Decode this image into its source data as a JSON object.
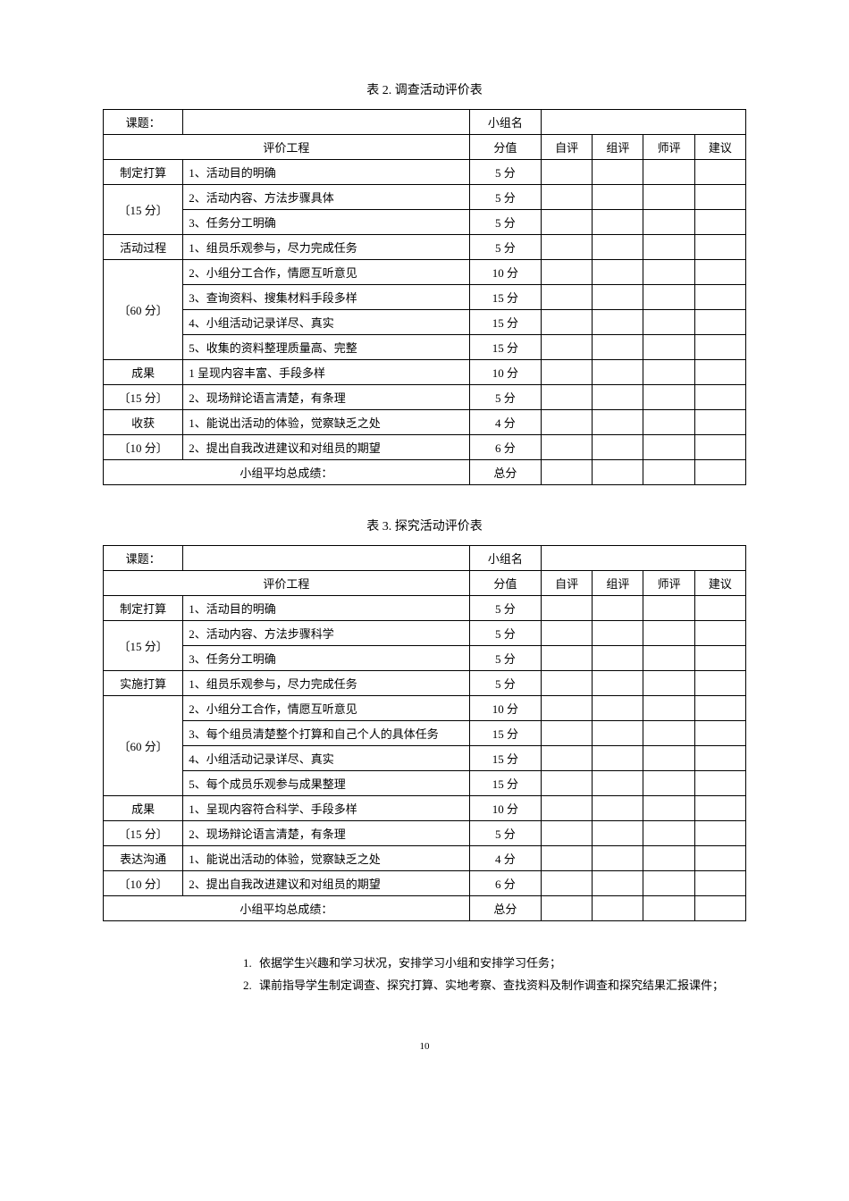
{
  "table1": {
    "title": "表 2.  调查活动评价表",
    "topic_label": "课题：",
    "group_label": "小组名",
    "criteria_header": "评价工程",
    "score_header": "分值",
    "eval_headers": [
      "自评",
      "组评",
      "师评",
      "建议"
    ],
    "sections": [
      {
        "category": "制定打算",
        "points": "〔15 分〕",
        "rows": [
          {
            "criteria": "1、活动目的明确",
            "score": "5 分"
          },
          {
            "criteria": "2、活动内容、方法步骤具体",
            "score": "5 分"
          },
          {
            "criteria": "3、任务分工明确",
            "score": "5 分"
          }
        ]
      },
      {
        "category": "活动过程",
        "points": "〔60 分〕",
        "rows": [
          {
            "criteria": "1、组员乐观参与，尽力完成任务",
            "score": "5 分"
          },
          {
            "criteria": "2、小组分工合作，情愿互听意见",
            "score": "10 分"
          },
          {
            "criteria": "3、查询资料、搜集材料手段多样",
            "score": "15 分"
          },
          {
            "criteria": "4、小组活动记录详尽、真实",
            "score": "15 分"
          },
          {
            "criteria": "5、收集的资料整理质量高、完整",
            "score": "15 分"
          }
        ]
      },
      {
        "category": "成果",
        "points": "〔15 分〕",
        "rows": [
          {
            "criteria": "1 呈现内容丰富、手段多样",
            "score": "10 分"
          },
          {
            "criteria": "2、现场辩论语言清楚，有条理",
            "score": "5 分"
          }
        ]
      },
      {
        "category": "收获",
        "points": "〔10 分〕",
        "rows": [
          {
            "criteria": "1、能说出活动的体验，觉察缺乏之处",
            "score": "4 分"
          },
          {
            "criteria": "2、提出自我改进建议和对组员的期望",
            "score": "6 分"
          }
        ]
      }
    ],
    "footer_label": "小组平均总成绩：",
    "footer_score": "总分"
  },
  "table2": {
    "title": "表 3. 探究活动评价表",
    "topic_label": "课题：",
    "group_label": "小组名",
    "criteria_header": "评价工程",
    "score_header": "分值",
    "eval_headers": [
      "自评",
      "组评",
      "师评",
      "建议"
    ],
    "sections": [
      {
        "category": "制定打算",
        "points": "〔15 分〕",
        "rows": [
          {
            "criteria": "1、活动目的明确",
            "score": "5 分"
          },
          {
            "criteria": "2、活动内容、方法步骤科学",
            "score": "5 分"
          },
          {
            "criteria": "3、任务分工明确",
            "score": "5 分"
          }
        ]
      },
      {
        "category": "实施打算",
        "points": "〔60 分〕",
        "rows": [
          {
            "criteria": "1、组员乐观参与，尽力完成任务",
            "score": "5 分"
          },
          {
            "criteria": "2、小组分工合作，情愿互听意见",
            "score": "10 分"
          },
          {
            "criteria": "3、每个组员清楚整个打算和自己个人的具体任务",
            "score": "15 分"
          },
          {
            "criteria": "4、小组活动记录详尽、真实",
            "score": "15 分"
          },
          {
            "criteria": "5、每个成员乐观参与成果整理",
            "score": "15 分"
          }
        ]
      },
      {
        "category": "成果",
        "points": "〔15 分〕",
        "rows": [
          {
            "criteria": "1、呈现内容符合科学、手段多样",
            "score": "10 分"
          },
          {
            "criteria": "2、现场辩论语言清楚，有条理",
            "score": "5 分"
          }
        ]
      },
      {
        "category": "表达沟通",
        "points": "〔10 分〕",
        "rows": [
          {
            "criteria": "1、能说出活动的体验，觉察缺乏之处",
            "score": "4 分"
          },
          {
            "criteria": "2、提出自我改进建议和对组员的期望",
            "score": "6 分"
          }
        ]
      }
    ],
    "footer_label": "小组平均总成绩：",
    "footer_score": "总分"
  },
  "notes": [
    "依据学生兴趣和学习状况，安排学习小组和安排学习任务；",
    "课前指导学生制定调查、探究打算、实地考察、查找资料及制作调查和探究结果汇报课件；"
  ],
  "page_number": "10"
}
